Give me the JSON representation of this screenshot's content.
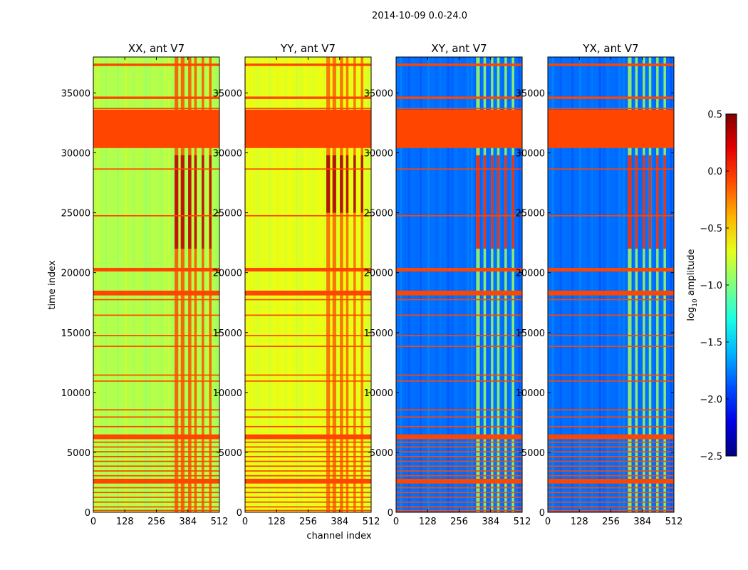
{
  "chart_data": {
    "type": "heatmap",
    "suptitle": "2014-10-09 0.0-24.0",
    "xlabel": "channel index",
    "ylabel": "time index",
    "xlim": [
      0,
      512
    ],
    "ylim": [
      0,
      38000
    ],
    "xticks": [
      "0",
      "128",
      "256",
      "384",
      "512"
    ],
    "yticks": [
      "0",
      "5000",
      "10000",
      "15000",
      "20000",
      "25000",
      "30000",
      "35000"
    ],
    "colorbar": {
      "label": "log10 amplitude",
      "label_base": "log",
      "label_sub": "10",
      "label_rest": " amplitude",
      "min": -2.5,
      "max": 0.5,
      "ticks": [
        "0.5",
        "0.0",
        "−0.5",
        "−1.0",
        "−1.5",
        "−2.0",
        "−2.5"
      ],
      "colormap": "jet"
    },
    "flagged_color": "#ff4500",
    "flagged_time_bands": [
      [
        30400,
        33600
      ],
      [
        33650,
        33750
      ],
      [
        34500,
        34700
      ],
      [
        37250,
        37450
      ],
      [
        28600,
        28700
      ],
      [
        24700,
        24800
      ],
      [
        20100,
        20400
      ],
      [
        18100,
        18500
      ],
      [
        17700,
        17800
      ],
      [
        16400,
        16500
      ],
      [
        14700,
        14800
      ],
      [
        13800,
        13900
      ],
      [
        11400,
        11500
      ],
      [
        10900,
        11000
      ],
      [
        8500,
        8600
      ],
      [
        7900,
        8000
      ],
      [
        7100,
        7200
      ],
      [
        6100,
        6500
      ],
      [
        5800,
        5900
      ],
      [
        5400,
        5500
      ],
      [
        5000,
        5100
      ],
      [
        4600,
        4700
      ],
      [
        4200,
        4300
      ],
      [
        3800,
        3900
      ],
      [
        3400,
        3500
      ],
      [
        3000,
        3100
      ],
      [
        2400,
        2800
      ],
      [
        2000,
        2100
      ],
      [
        1600,
        1700
      ],
      [
        1200,
        1300
      ],
      [
        800,
        900
      ],
      [
        400,
        500
      ],
      [
        100,
        200
      ]
    ],
    "panels": [
      {
        "title": "XX, ant V7",
        "baseline": -0.85,
        "hot_columns": [
          [
            330,
            345
          ],
          [
            355,
            370
          ],
          [
            385,
            398
          ],
          [
            410,
            420
          ],
          [
            440,
            450
          ],
          [
            470,
            480
          ]
        ],
        "hot_value": -0.1,
        "hot_time_band": [
          22000,
          29800
        ],
        "hot_time_value": 0.35
      },
      {
        "title": "YY, ant V7",
        "baseline": -0.7,
        "hot_columns": [
          [
            330,
            345
          ],
          [
            355,
            370
          ],
          [
            385,
            398
          ],
          [
            410,
            420
          ],
          [
            440,
            450
          ],
          [
            470,
            480
          ]
        ],
        "hot_value": -0.15,
        "hot_time_band": [
          25000,
          29800
        ],
        "hot_time_value": 0.4
      },
      {
        "title": "XY, ant V7",
        "baseline": -1.8,
        "hot_columns": [
          [
            325,
            340
          ],
          [
            355,
            365
          ],
          [
            385,
            395
          ],
          [
            410,
            420
          ],
          [
            440,
            450
          ],
          [
            470,
            480
          ]
        ],
        "hot_value": -0.9,
        "hot_time_band": [
          22000,
          29800
        ],
        "hot_time_value": 0.1
      },
      {
        "title": "YX, ant V7",
        "baseline": -1.8,
        "hot_columns": [
          [
            325,
            340
          ],
          [
            355,
            365
          ],
          [
            385,
            395
          ],
          [
            410,
            420
          ],
          [
            440,
            450
          ],
          [
            470,
            480
          ]
        ],
        "hot_value": -0.9,
        "hot_time_band": [
          22000,
          29800
        ],
        "hot_time_value": 0.1
      }
    ]
  }
}
